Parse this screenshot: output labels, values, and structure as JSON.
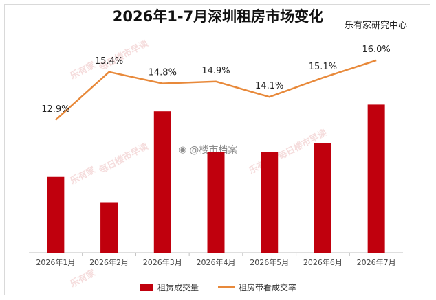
{
  "title": "2026年1-7月深圳租房市场变化",
  "source": "乐有家研究中心",
  "watermark": {
    "text": "每日楼市早读",
    "logo": "乐有家",
    "weibo": "@楼市档案"
  },
  "chart_data": {
    "type": "bar",
    "categories": [
      "2026年1月",
      "2026年2月",
      "2026年3月",
      "2026年4月",
      "2026年5月",
      "2026年6月",
      "2026年7月"
    ],
    "series": [
      {
        "name": "租赁成交量",
        "type": "bar",
        "color": "#c0000d",
        "values": [
          0.45,
          0.3,
          0.84,
          0.6,
          0.6,
          0.65,
          0.88
        ]
      },
      {
        "name": "租房带看成交率",
        "type": "line",
        "color": "#e8893a",
        "values": [
          12.9,
          15.4,
          14.8,
          14.9,
          14.1,
          15.1,
          16.0
        ],
        "labels": [
          "12.9%",
          "15.4%",
          "14.8%",
          "14.9%",
          "14.1%",
          "15.1%",
          "16.0%"
        ]
      }
    ],
    "bar_scale": "relative (no axis shown)",
    "line_ylim": [
      6,
      17
    ],
    "legend_position": "bottom",
    "grid": false
  }
}
